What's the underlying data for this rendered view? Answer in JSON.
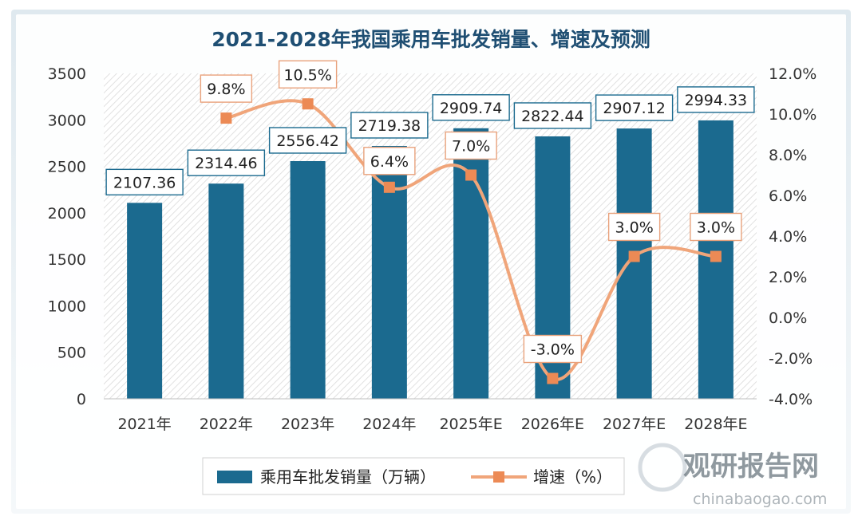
{
  "chart_data": {
    "type": "bar",
    "title": "2021-2028年我国乘用车批发销量、增速及预测",
    "categories": [
      "2021年",
      "2022年",
      "2023年",
      "2024年",
      "2025年E",
      "2026年E",
      "2027年E",
      "2028年E"
    ],
    "series": [
      {
        "name": "乘用车批发销量（万辆）",
        "kind": "bar",
        "axis": "left",
        "values": [
          2107.36,
          2314.46,
          2556.42,
          2719.38,
          2909.74,
          2822.44,
          2907.12,
          2994.33
        ],
        "labels": [
          "2107.36",
          "2314.46",
          "2556.42",
          "2719.38",
          "2909.74",
          "2822.44",
          "2907.12",
          "2994.33"
        ],
        "color": "#1b6a8f"
      },
      {
        "name": "增速（%）",
        "kind": "line",
        "axis": "right",
        "values": [
          null,
          9.8,
          10.5,
          6.4,
          7.0,
          -3.0,
          3.0,
          3.0
        ],
        "labels": [
          null,
          "9.8%",
          "10.5%",
          "6.4%",
          "7.0%",
          "-3.0%",
          "3.0%",
          "3.0%"
        ],
        "color": "#f0a57a"
      }
    ],
    "y_left": {
      "min": 0,
      "max": 3500,
      "step": 500,
      "ticks": [
        "0",
        "500",
        "1000",
        "1500",
        "2000",
        "2500",
        "3000",
        "3500"
      ]
    },
    "y_right": {
      "min": -4,
      "max": 12,
      "step": 2,
      "ticks": [
        "-4.0%",
        "-2.0%",
        "0.0%",
        "2.0%",
        "4.0%",
        "6.0%",
        "8.0%",
        "10.0%",
        "12.0%"
      ]
    },
    "legend_position": "bottom",
    "watermark": "观研报告网 chinabaogao.com"
  }
}
